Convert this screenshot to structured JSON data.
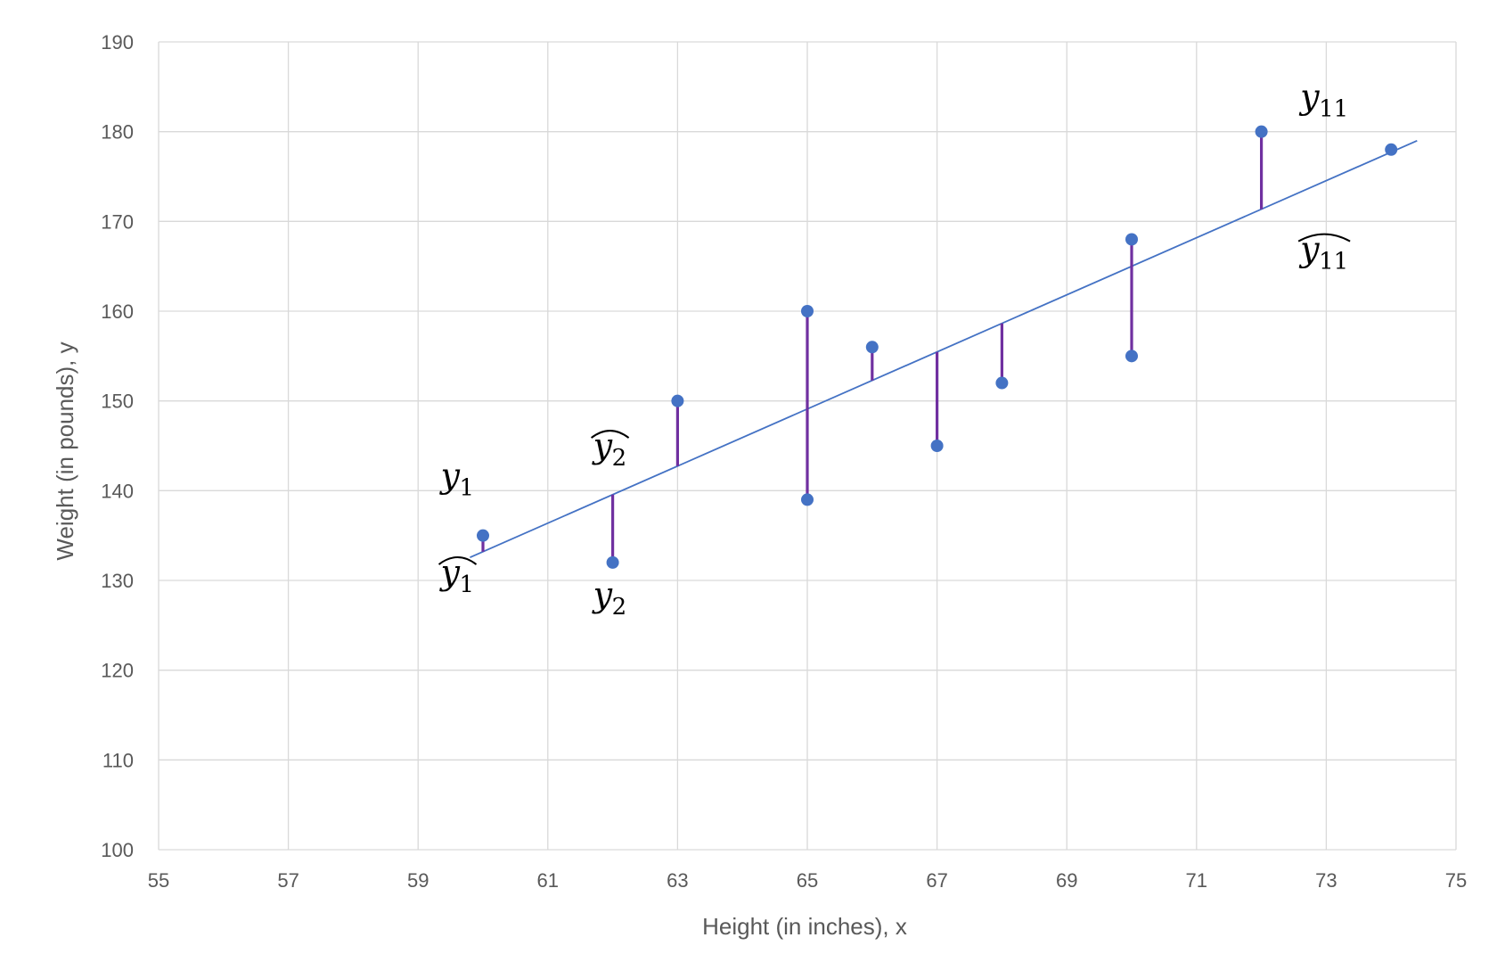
{
  "chart_data": {
    "type": "scatter",
    "xlabel": "Height (in inches), x",
    "ylabel": "Weight (in pounds), y",
    "xlim": [
      55,
      75
    ],
    "ylim": [
      100,
      190
    ],
    "xticks": [
      55,
      57,
      59,
      61,
      63,
      65,
      67,
      69,
      71,
      73,
      75
    ],
    "yticks": [
      100,
      110,
      120,
      130,
      140,
      150,
      160,
      170,
      180,
      190
    ],
    "grid": true,
    "colors": {
      "points": "#4472C4",
      "trendline": "#4472C4",
      "residuals": "#7030A0",
      "grid": "#D9D9D9"
    },
    "points": [
      {
        "x": 60,
        "y": 135
      },
      {
        "x": 62,
        "y": 132
      },
      {
        "x": 63,
        "y": 150
      },
      {
        "x": 65,
        "y": 139
      },
      {
        "x": 65,
        "y": 160
      },
      {
        "x": 66,
        "y": 156
      },
      {
        "x": 67,
        "y": 145
      },
      {
        "x": 68,
        "y": 152
      },
      {
        "x": 70,
        "y": 155
      },
      {
        "x": 70,
        "y": 168
      },
      {
        "x": 72,
        "y": 180
      },
      {
        "x": 74,
        "y": 178
      }
    ],
    "trendline": {
      "slope": 3.18,
      "intercept": -57.6,
      "x_range": [
        59.8,
        74.4
      ]
    },
    "residual_x": [
      60,
      62,
      63,
      65,
      66,
      67,
      68,
      70,
      72
    ],
    "annotations": [
      {
        "base": "y",
        "sub": "1",
        "hat": false
      },
      {
        "base": "y",
        "sub": "1",
        "hat": true
      },
      {
        "base": "y",
        "sub": "2",
        "hat": false
      },
      {
        "base": "y",
        "sub": "2",
        "hat": true
      },
      {
        "base": "y",
        "sub": "11",
        "hat": false
      },
      {
        "base": "y",
        "sub": "11",
        "hat": true
      }
    ]
  }
}
